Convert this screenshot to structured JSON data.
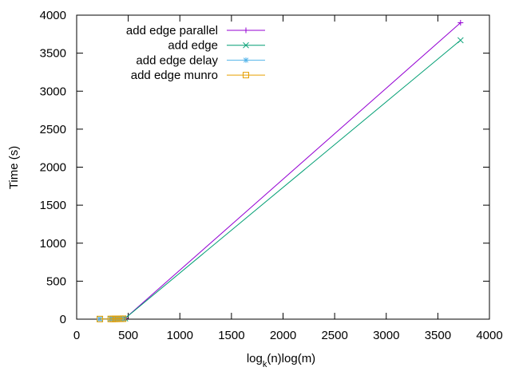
{
  "chart_data": {
    "type": "line",
    "title": "",
    "xlabel": "",
    "xlabel_parts": {
      "pre": "log",
      "sub": "k",
      "post": "(n)log(m)"
    },
    "ylabel": "Time (s)",
    "xlim": [
      0,
      4000
    ],
    "ylim": [
      0,
      4000
    ],
    "xticks": [
      0,
      500,
      1000,
      1500,
      2000,
      2500,
      3000,
      3500,
      4000
    ],
    "yticks": [
      0,
      500,
      1000,
      1500,
      2000,
      2500,
      3000,
      3500,
      4000
    ],
    "grid": false,
    "legend_position": "top-left",
    "series": [
      {
        "name": "add edge parallel",
        "color": "#9400d3",
        "marker": "plus",
        "x": [
          225,
          330,
          350,
          370,
          390,
          410,
          430,
          450,
          470,
          3720
        ],
        "y": [
          3,
          4,
          5,
          5,
          6,
          7,
          8,
          9,
          10,
          3900
        ]
      },
      {
        "name": "add edge",
        "color": "#009e73",
        "marker": "cross",
        "x": [
          225,
          330,
          350,
          370,
          390,
          410,
          430,
          450,
          470,
          3720
        ],
        "y": [
          3,
          4,
          5,
          5,
          6,
          7,
          8,
          9,
          10,
          3670
        ]
      },
      {
        "name": "add edge delay",
        "color": "#56b4e9",
        "marker": "star",
        "x": [
          225,
          330,
          350,
          370,
          390,
          410,
          430,
          450
        ],
        "y": [
          2,
          3,
          3,
          4,
          4,
          5,
          5,
          6
        ]
      },
      {
        "name": "add edge munro",
        "color": "#e69f00",
        "marker": "square",
        "x": [
          225,
          330,
          350,
          370,
          390,
          410,
          430,
          450
        ],
        "y": [
          2,
          3,
          3,
          4,
          4,
          5,
          5,
          6
        ]
      }
    ]
  }
}
